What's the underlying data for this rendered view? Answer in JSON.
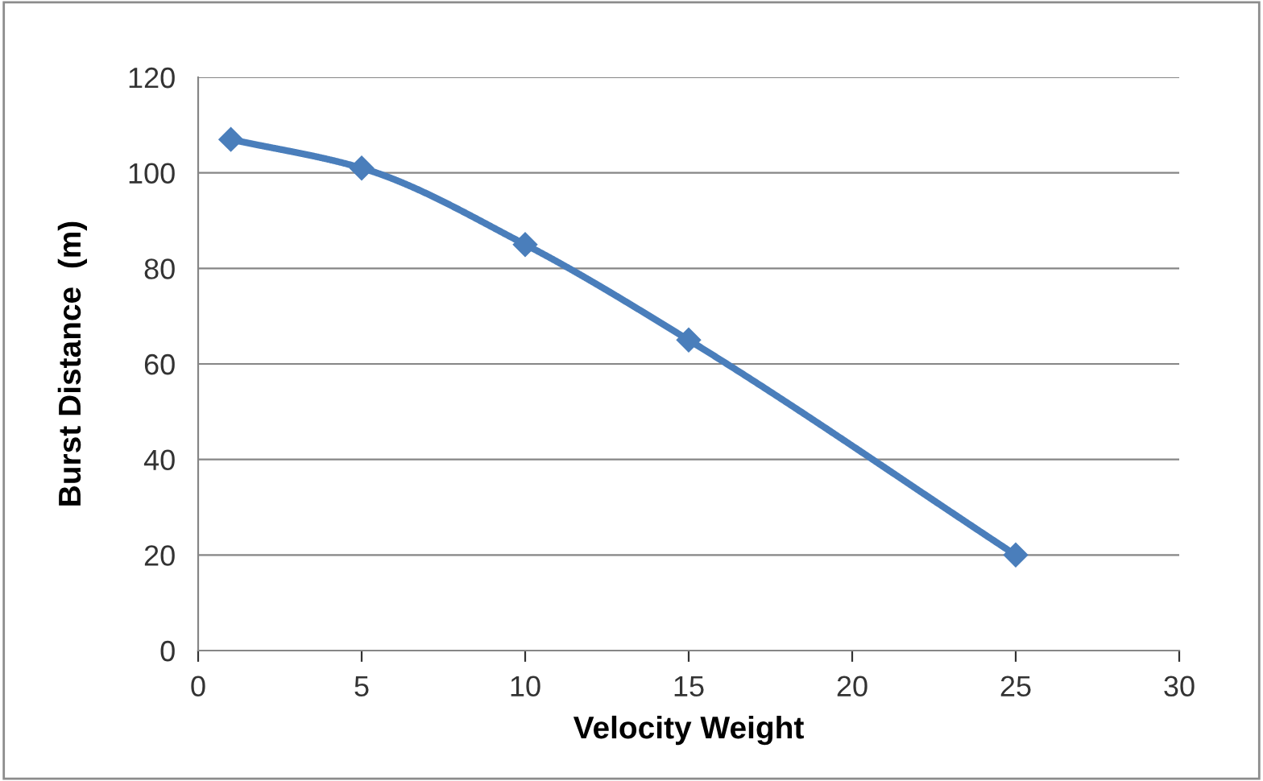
{
  "chart_data": {
    "type": "line",
    "xlabel": "Velocity Weight",
    "ylabel": "Burst Distance  (m)",
    "x": [
      1,
      5,
      10,
      15,
      25
    ],
    "series": [
      {
        "color": "#4a7ebb",
        "values": [
          107,
          101,
          85,
          65,
          20
        ]
      }
    ],
    "xlim": [
      0,
      30
    ],
    "xticks": [
      0,
      5,
      10,
      15,
      20,
      25,
      30
    ],
    "ylim": [
      0,
      120
    ],
    "yticks": [
      0,
      20,
      40,
      60,
      80,
      100,
      120
    ],
    "grid": "y",
    "marker": "diamond",
    "line_style": "solid"
  }
}
